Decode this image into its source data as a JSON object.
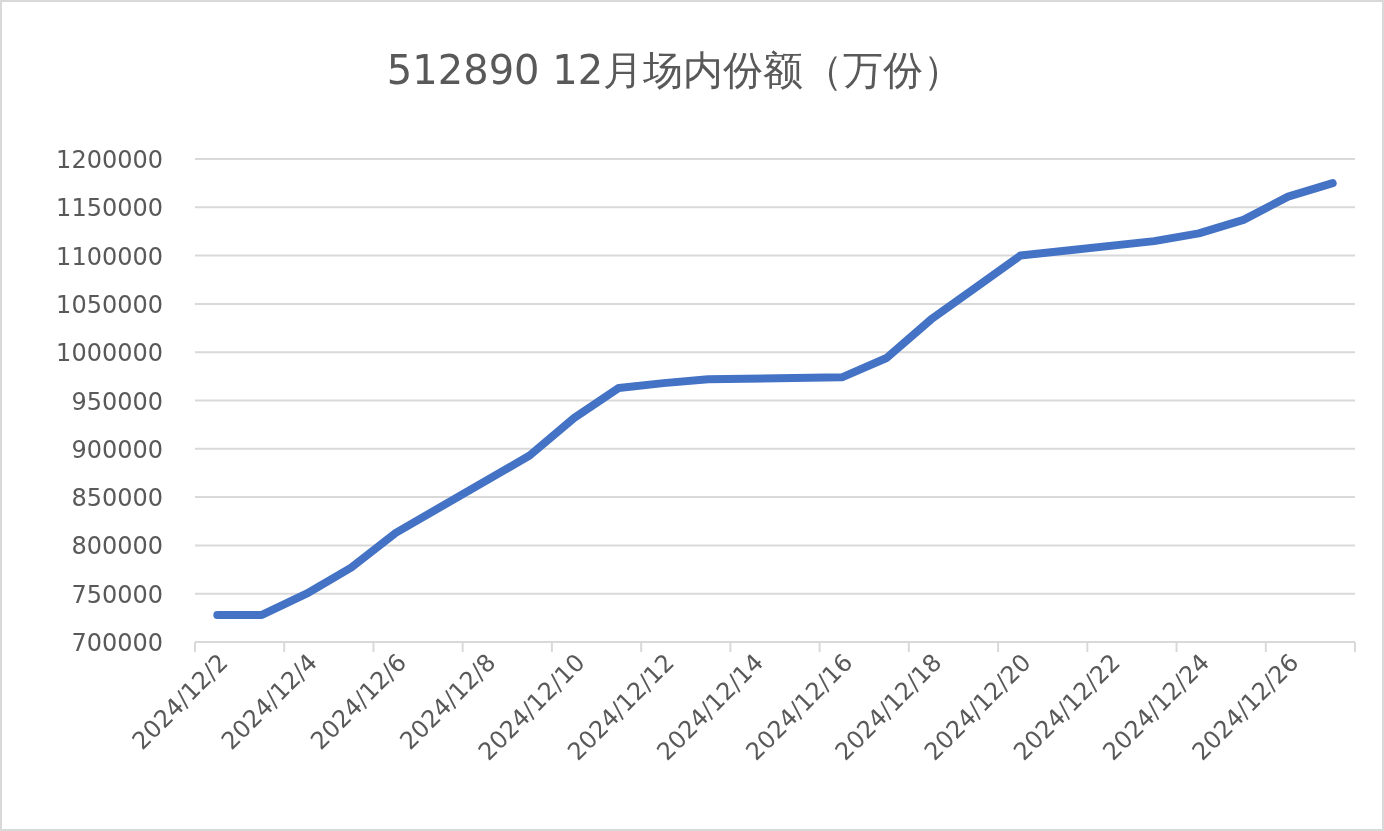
{
  "chart_data": {
    "type": "line",
    "title": "512890 12月场内份额（万份）",
    "x": [
      "2024-12-02",
      "2024-12-03",
      "2024-12-04",
      "2024-12-05",
      "2024-12-06",
      "2024-12-09",
      "2024-12-10",
      "2024-12-11",
      "2024-12-12",
      "2024-12-13",
      "2024-12-16",
      "2024-12-17",
      "2024-12-18",
      "2024-12-19",
      "2024-12-20",
      "2024-12-23",
      "2024-12-24",
      "2024-12-25",
      "2024-12-26",
      "2024-12-27"
    ],
    "values": [
      728000,
      728000,
      750000,
      777000,
      813000,
      893000,
      932000,
      963000,
      968000,
      972000,
      974000,
      994000,
      1034000,
      1067000,
      1100000,
      1115000,
      1123000,
      1137000,
      1161000,
      1175000
    ],
    "color": "#4472c4",
    "xlim": [
      "2024-12-01T12:00",
      "2024-12-27T12:00"
    ],
    "xticks": [
      {
        "value": "2024-12-02",
        "label": "2024/12/2"
      },
      {
        "value": "2024-12-04",
        "label": "2024/12/4"
      },
      {
        "value": "2024-12-06",
        "label": "2024/12/6"
      },
      {
        "value": "2024-12-08",
        "label": "2024/12/8"
      },
      {
        "value": "2024-12-10",
        "label": "2024/12/10"
      },
      {
        "value": "2024-12-12",
        "label": "2024/12/12"
      },
      {
        "value": "2024-12-14",
        "label": "2024/12/14"
      },
      {
        "value": "2024-12-16",
        "label": "2024/12/16"
      },
      {
        "value": "2024-12-18",
        "label": "2024/12/18"
      },
      {
        "value": "2024-12-20",
        "label": "2024/12/20"
      },
      {
        "value": "2024-12-22",
        "label": "2024/12/22"
      },
      {
        "value": "2024-12-24",
        "label": "2024/12/24"
      },
      {
        "value": "2024-12-26",
        "label": "2024/12/26"
      },
      {
        "value": "2024-12-01T12:00",
        "label": null
      },
      {
        "value": "2024-12-03T12:00",
        "label": null
      },
      {
        "value": "2024-12-05T12:00",
        "label": null
      },
      {
        "value": "2024-12-07T12:00",
        "label": null
      },
      {
        "value": "2024-12-09T12:00",
        "label": null
      },
      {
        "value": "2024-12-11T12:00",
        "label": null
      },
      {
        "value": "2024-12-13T12:00",
        "label": null
      },
      {
        "value": "2024-12-15T12:00",
        "label": null
      },
      {
        "value": "2024-12-17T12:00",
        "label": null
      },
      {
        "value": "2024-12-19T12:00",
        "label": null
      },
      {
        "value": "2024-12-21T12:00",
        "label": null
      },
      {
        "value": "2024-12-23T12:00",
        "label": null
      },
      {
        "value": "2024-12-25T12:00",
        "label": null
      },
      {
        "value": "2024-12-27T12:00",
        "label": null
      }
    ],
    "ylim": [
      700000,
      1200000
    ],
    "yticks": [
      700000,
      750000,
      800000,
      850000,
      900000,
      950000,
      1000000,
      1050000,
      1100000,
      1150000,
      1200000
    ],
    "grid": "y"
  }
}
